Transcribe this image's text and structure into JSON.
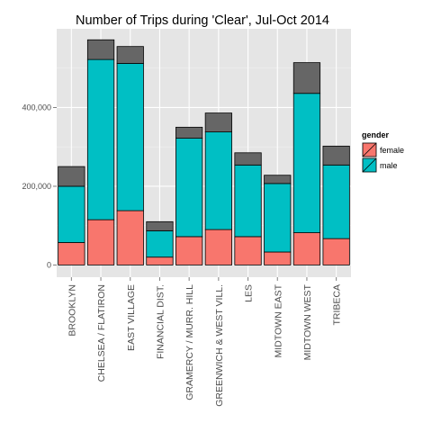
{
  "chart_data": {
    "type": "bar",
    "stacked": true,
    "title": "Number of Trips during 'Clear', Jul-Oct 2014",
    "xlabel": "",
    "ylabel": "",
    "categories": [
      "BROOKLYN",
      "CHELSEA / FLATIRON",
      "EAST VILLAGE",
      "FINANCIAL DIST.",
      "GRAMERCY / MURR. HILL",
      "GREENWICH & WEST VILL.",
      "LES",
      "MIDTOWN EAST",
      "MIDTOWN WEST",
      "TRIBECA"
    ],
    "series": [
      {
        "name": "female",
        "color": "#F8766D",
        "values": [
          57000,
          115000,
          138000,
          20000,
          72000,
          90000,
          72000,
          33000,
          82000,
          67000
        ]
      },
      {
        "name": "male",
        "color": "#00BFC4",
        "values": [
          143000,
          407000,
          374000,
          67000,
          250000,
          248000,
          182000,
          174000,
          354000,
          187000
        ]
      },
      {
        "name": "",
        "color": "#666666",
        "values": [
          50000,
          50000,
          43000,
          23000,
          28000,
          48000,
          31000,
          21000,
          78000,
          48000
        ]
      }
    ],
    "ylim": [
      -31000,
      600000
    ],
    "yticks": [
      0,
      200000,
      400000
    ],
    "ytick_labels": [
      "0",
      "200,000",
      "400,000"
    ],
    "grid": true,
    "legend": {
      "title": "gender",
      "placement": "right"
    }
  }
}
